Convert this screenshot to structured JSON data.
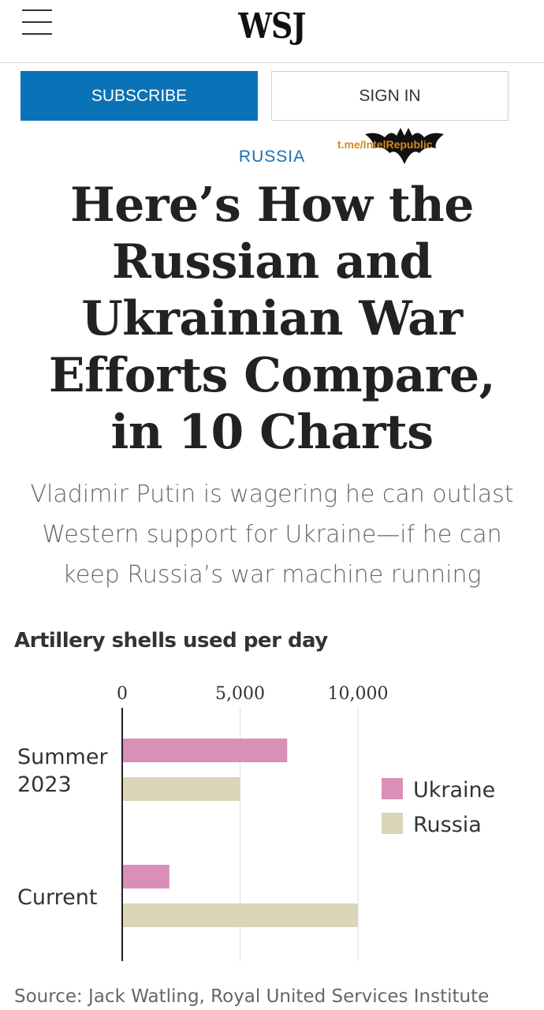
{
  "header": {
    "logo": "WSJ",
    "menu_icon": "hamburger-menu-icon"
  },
  "auth": {
    "subscribe_label": "SUBSCRIBE",
    "signin_label": "SIGN IN"
  },
  "watermark": {
    "text": "t.me/IntelRepublic"
  },
  "article": {
    "kicker": "RUSSIA",
    "headline": "Here’s How the Russian and Ukrainian War Efforts Compare, in 10 Charts",
    "dek": "Vladimir Putin is wagering he can outlast Western support for Ukraine—if he can keep Russia’s war machine running"
  },
  "colors": {
    "subscribe_bg": "#0a72b6",
    "kicker": "#1a6fae",
    "ukraine": "#d98fb8",
    "russia": "#dcd6b8"
  },
  "chart_data": {
    "type": "bar",
    "orientation": "horizontal",
    "title": "Artillery shells used per day",
    "categories": [
      "Summer\n2023",
      "Current"
    ],
    "category_lines": [
      [
        "Summer",
        "2023"
      ],
      [
        "Current"
      ]
    ],
    "series": [
      {
        "name": "Ukraine",
        "values": [
          7000,
          2000
        ],
        "color": "#d98fb8"
      },
      {
        "name": "Russia",
        "values": [
          5000,
          10000
        ],
        "color": "#dcd6b8"
      }
    ],
    "xlim": [
      0,
      10000
    ],
    "ticks": [
      0,
      5000,
      10000
    ],
    "tick_labels": [
      "0",
      "5,000",
      "10,000"
    ],
    "grid": true,
    "legend": "right",
    "source": "Source: Jack Watling, Royal United Services Institute"
  }
}
